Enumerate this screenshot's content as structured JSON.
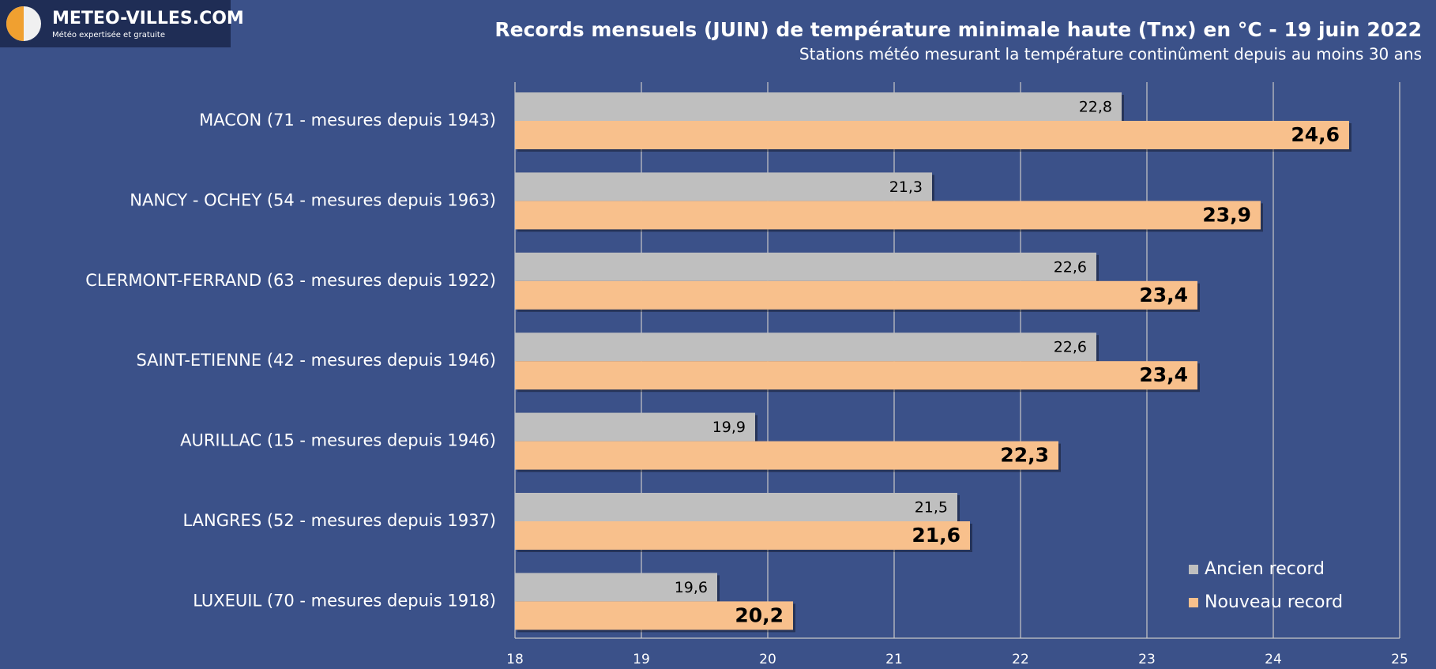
{
  "logo": {
    "name": "METEO-VILLES.COM",
    "tagline": "Météo expertisée et gratuite"
  },
  "chart_data": {
    "type": "hbar",
    "title": "Records mensuels (JUIN) de température minimale haute (Tnx) en °C - 19 juin 2022",
    "subtitle": "Stations météo mesurant la température continûment depuis au moins 30 ans",
    "categories": [
      "MACON (71 - mesures depuis 1943)",
      "NANCY - OCHEY (54 - mesures depuis 1963)",
      "CLERMONT-FERRAND (63 - mesures depuis 1922)",
      "SAINT-ETIENNE (42 - mesures depuis 1946)",
      "AURILLAC (15 - mesures depuis 1946)",
      "LANGRES (52 - mesures depuis 1937)",
      "LUXEUIL (70 - mesures depuis 1918)"
    ],
    "series": [
      {
        "name": "Ancien record",
        "color": "#bfbfbf",
        "values": [
          22.8,
          21.3,
          22.6,
          22.6,
          19.9,
          21.5,
          19.6
        ],
        "value_labels": [
          "22,8",
          "21,3",
          "22,6",
          "22,6",
          "19,9",
          "21,5",
          "19,6"
        ]
      },
      {
        "name": "Nouveau record",
        "color": "#f8c08c",
        "values": [
          24.6,
          23.9,
          23.4,
          23.4,
          22.3,
          21.6,
          20.2
        ],
        "value_labels": [
          "24,6",
          "23,9",
          "23,4",
          "23,4",
          "22,3",
          "21,6",
          "20,2"
        ]
      }
    ],
    "xlim": [
      18,
      25
    ],
    "xticks": [
      18,
      19,
      20,
      21,
      22,
      23,
      24,
      25
    ],
    "grid": true,
    "legend": "lower right"
  }
}
